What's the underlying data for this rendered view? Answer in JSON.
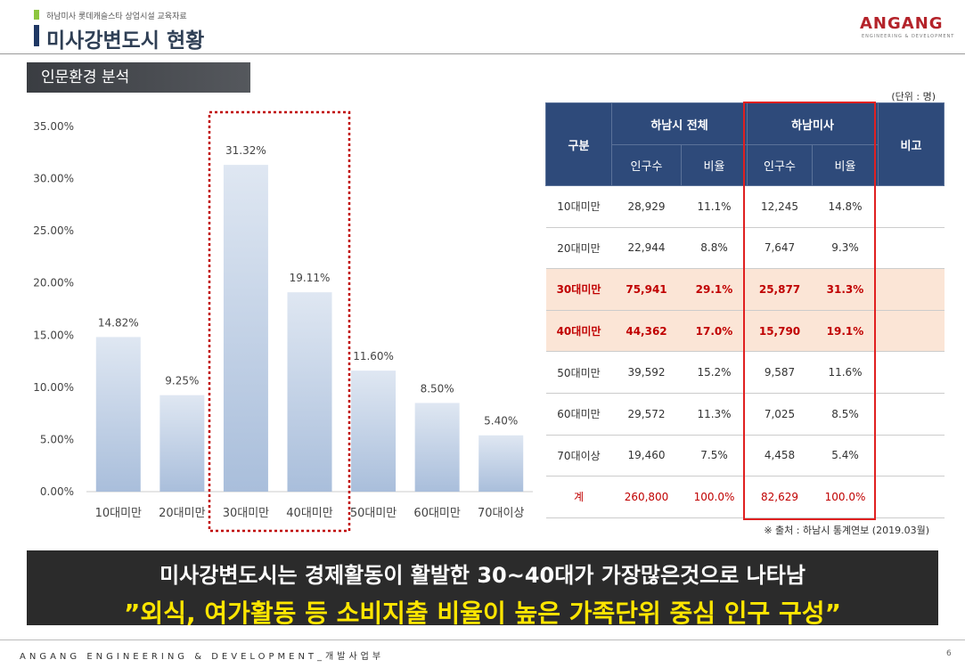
{
  "header": {
    "breadcrumb": "하남미사 롯데캐슬스타 상업시설 교육자료",
    "title": "미사강변도시 현황",
    "logo": "ANGANG",
    "logo_sub": "ENGINEERING & DEVELOPMENT"
  },
  "section": "인문환경 분석",
  "chart": {
    "type": "bar",
    "categories": [
      "10대미만",
      "20대미만",
      "30대미만",
      "40대미만",
      "50대미만",
      "60대미만",
      "70대이상"
    ],
    "values": [
      14.82,
      9.25,
      31.32,
      19.11,
      11.6,
      8.5,
      5.4
    ],
    "value_labels": [
      "14.82%",
      "9.25%",
      "31.32%",
      "19.11%",
      "11.60%",
      "8.50%",
      "5.40%"
    ],
    "ylim": [
      0,
      35
    ],
    "yticks": [
      {
        "value": 0,
        "label": "0.00%"
      },
      {
        "value": 5,
        "label": "5.00%"
      },
      {
        "value": 10,
        "label": "10.00%"
      },
      {
        "value": 15,
        "label": "15.00%"
      },
      {
        "value": 20,
        "label": "20.00%"
      },
      {
        "value": 25,
        "label": "25.00%"
      },
      {
        "value": 30,
        "label": "30.00%"
      },
      {
        "value": 35,
        "label": "35.00%"
      }
    ]
  },
  "table": {
    "unit": "(단위 : 명)",
    "header": [
      "구분",
      "하남시 전체",
      "하남미사",
      "비고"
    ],
    "subheader": [
      "인구수",
      "비율",
      "인구수",
      "비율"
    ],
    "rows": [
      [
        "10대미만",
        "28,929",
        "11.1%",
        "12,245",
        "14.8%"
      ],
      [
        "20대미만",
        "22,944",
        "8.8%",
        "7,647",
        "9.3%"
      ],
      [
        "30대미만",
        "75,941",
        "29.1%",
        "25,877",
        "31.3%"
      ],
      [
        "40대미만",
        "44,362",
        "17.0%",
        "15,790",
        "19.1%"
      ],
      [
        "50대미만",
        "39,592",
        "15.2%",
        "9,587",
        "11.6%"
      ],
      [
        "60대미만",
        "29,572",
        "11.3%",
        "7,025",
        "8.5%"
      ],
      [
        "70대이상",
        "19,460",
        "7.5%",
        "4,458",
        "5.4%"
      ],
      [
        "계",
        "260,800",
        "100.0%",
        "82,629",
        "100.0%"
      ]
    ],
    "source": "※ 출처 : 하남시 통계연보 (2019.03월)"
  },
  "banner": {
    "line1": "미사강변도시는 경제활동이 활발한 30~40대가 가장많은것으로 나타남",
    "line2": "”외식, 여가활동 등 소비지출 비율이 높은 가족단위 중심 인구 구성”"
  },
  "footer": {
    "company": "ANGANG ENGINEERING & DEVELOPMENT_개발사업부",
    "page": "6"
  }
}
